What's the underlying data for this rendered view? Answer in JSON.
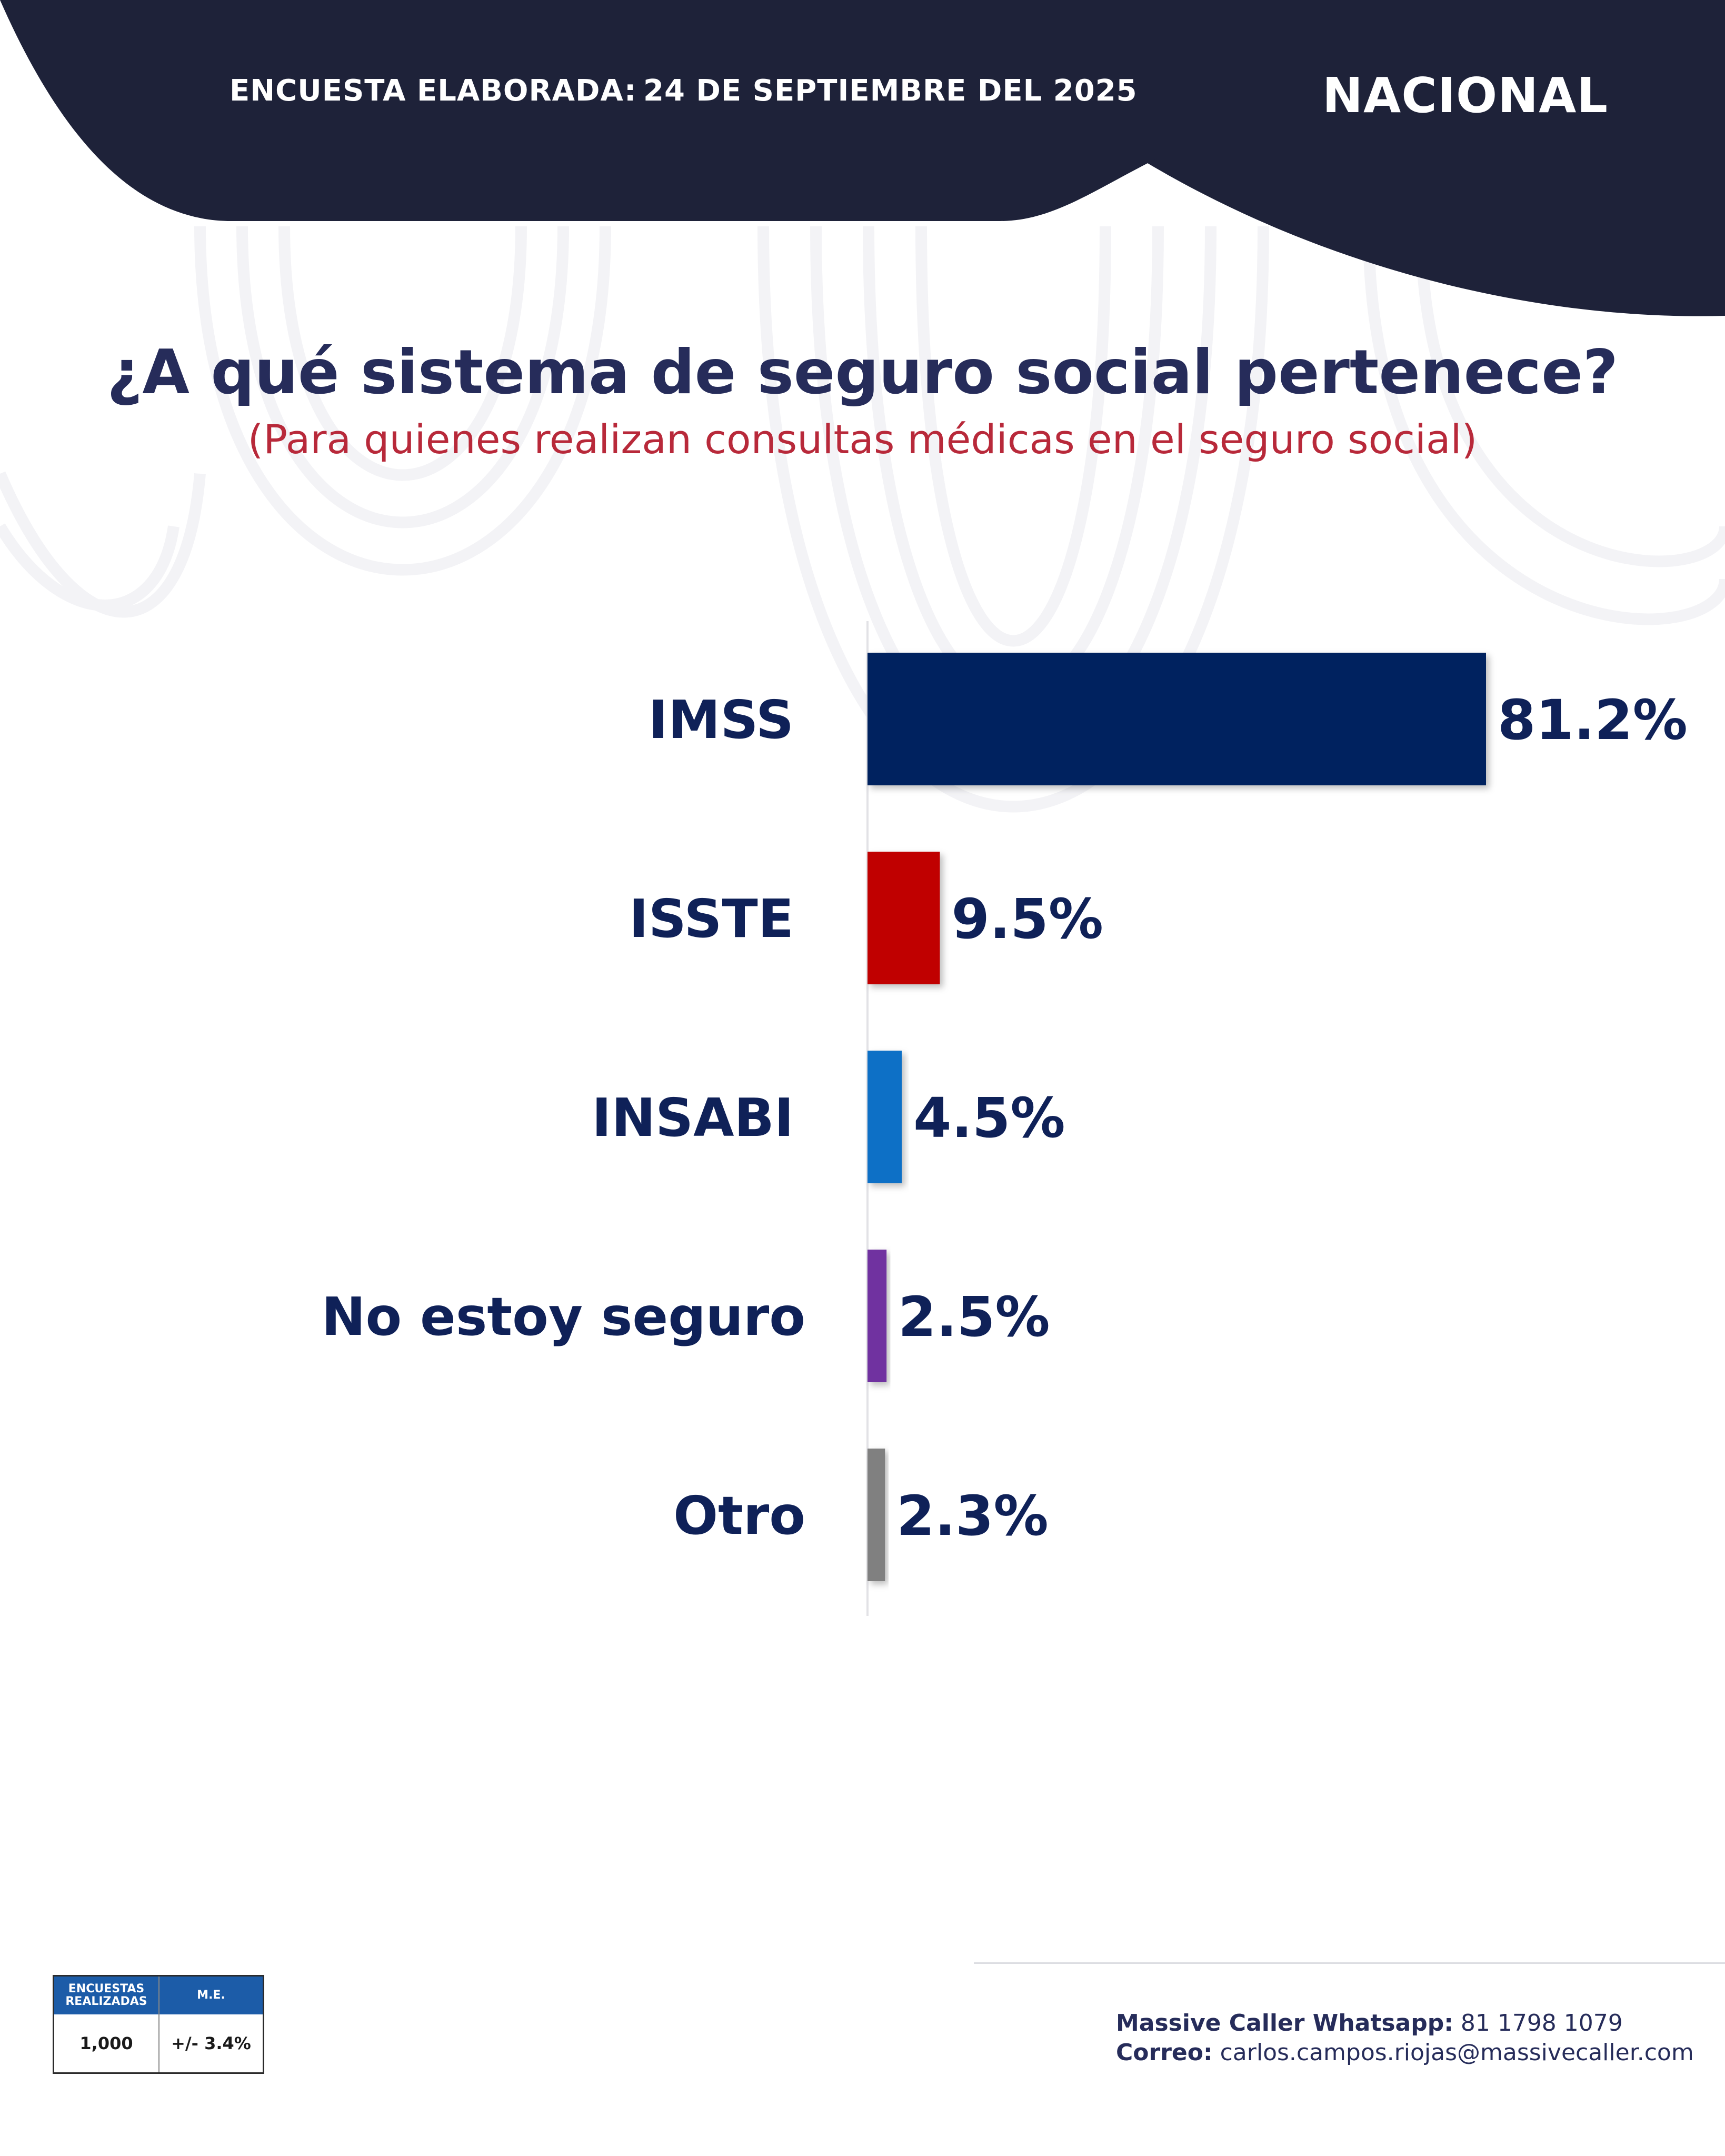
{
  "header": {
    "survey_label": "ENCUESTA ELABORADA:",
    "survey_date": "24 DE SEPTIEMBRE DEL 2025",
    "region": "NACIONAL"
  },
  "colors": {
    "header_navy": "#1e2239",
    "title": "#262c5a",
    "subtitle": "#b8293a"
  },
  "chart_data": {
    "type": "bar",
    "orientation": "horizontal",
    "title": "¿A qué sistema de seguro social pertenece?",
    "subtitle": "(Para quienes realizan consultas médicas en el seguro social)",
    "xlabel": "",
    "ylabel": "",
    "grid": false,
    "xlim": [
      0,
      100
    ],
    "categories": [
      "IMSS",
      "ISSTE",
      "INSABI",
      "No estoy seguro",
      "Otro"
    ],
    "values": [
      81.2,
      9.5,
      4.5,
      2.5,
      2.3
    ],
    "value_labels": [
      "81.2%",
      "9.5%",
      "4.5%",
      "2.5%",
      "2.3%"
    ],
    "bar_colors": [
      "#02205e",
      "#c00000",
      "#0f6fc6",
      "#7030a0",
      "#808080"
    ]
  },
  "stats_box": {
    "col1_header": "ENCUESTAS REALIZADAS",
    "col2_header": "M.E.",
    "col1_value": "1,000",
    "col2_value": "+/- 3.4%"
  },
  "footer": {
    "whatsapp_label": "Massive Caller Whatsapp:",
    "whatsapp_value": "81 1798 1079",
    "email_label": "Correo:",
    "email_value": "carlos.campos.riojas@massivecaller.com"
  }
}
